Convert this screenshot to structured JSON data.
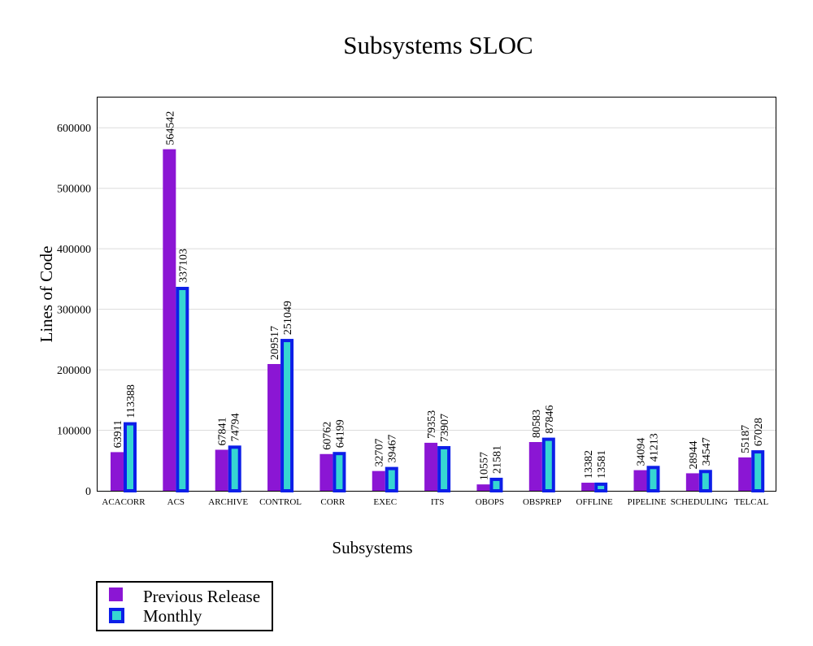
{
  "chart_data": {
    "type": "bar",
    "title": "Subsystems SLOC",
    "xlabel": "Subsystems",
    "ylabel": "Lines of Code",
    "ylim": [
      0,
      650000
    ],
    "yticks": [
      0,
      100000,
      200000,
      300000,
      400000,
      500000,
      600000
    ],
    "grid": true,
    "legend_position": "bottom-left",
    "categories": [
      "ACACORR",
      "ACS",
      "ARCHIVE",
      "CONTROL",
      "CORR",
      "EXEC",
      "ITS",
      "OBOPS",
      "OBSPREP",
      "OFFLINE",
      "PIPELINE",
      "SCHEDULING",
      "TELCAL"
    ],
    "series": [
      {
        "name": "Previous Release",
        "fill": "#8b16d4",
        "stroke": "#8b16d4",
        "values": [
          63911,
          564542,
          67841,
          209517,
          60762,
          32707,
          79353,
          10557,
          80583,
          13382,
          34094,
          28944,
          55187
        ]
      },
      {
        "name": "Monthly",
        "fill": "#36d6d2",
        "stroke": "#0d1fe8",
        "values": [
          113388,
          337103,
          74794,
          251049,
          64199,
          39467,
          73907,
          21581,
          87846,
          13581,
          41213,
          34547,
          67028
        ]
      }
    ]
  }
}
